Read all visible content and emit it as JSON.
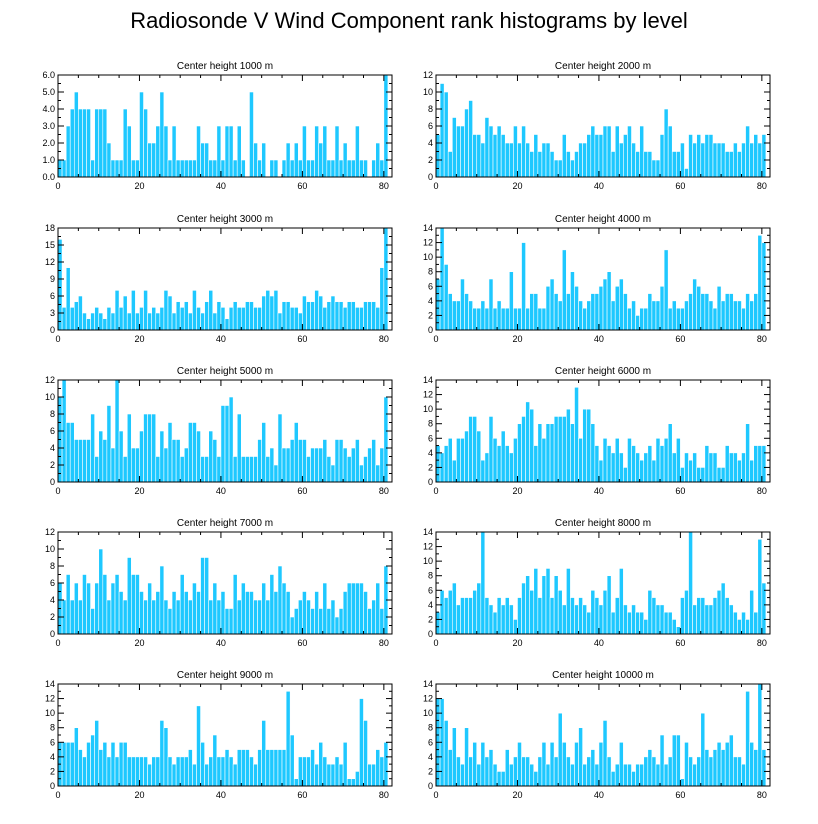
{
  "title": "Radiosonde V Wind Component rank histograms by level",
  "colors": {
    "bar": "#1ec8ff",
    "bar_edge": "#ffffff",
    "axis": "#000000"
  },
  "chart_data": [
    {
      "type": "bar",
      "title": "Center height 1000 m",
      "xlim": [
        0,
        82
      ],
      "ylim": [
        0,
        6
      ],
      "xticks": [
        0,
        20,
        40,
        60,
        80
      ],
      "yticks": [
        0,
        1,
        2,
        3,
        4,
        5,
        6
      ],
      "ytick_labels": [
        "0.0",
        "1.0",
        "2.0",
        "3.0",
        "4.0",
        "5.0",
        "6.0"
      ],
      "values": [
        1,
        1,
        3,
        4,
        5,
        4,
        4,
        4,
        1,
        4,
        4,
        4,
        2,
        1,
        1,
        1,
        4,
        3,
        1,
        1,
        5,
        4,
        2,
        2,
        3,
        5,
        3,
        1,
        3,
        1,
        1,
        1,
        1,
        1,
        3,
        2,
        2,
        1,
        1,
        3,
        1,
        3,
        3,
        1,
        3,
        1,
        0,
        5,
        2,
        1,
        2,
        0,
        1,
        1,
        0,
        1,
        2,
        1,
        2,
        1,
        3,
        1,
        1,
        3,
        2,
        3,
        1,
        1,
        3,
        1,
        2,
        1,
        1,
        3,
        1,
        1,
        0,
        1,
        2,
        1,
        6
      ]
    },
    {
      "type": "bar",
      "title": "Center height 2000 m",
      "xlim": [
        0,
        82
      ],
      "ylim": [
        0,
        12
      ],
      "xticks": [
        0,
        20,
        40,
        60,
        80
      ],
      "yticks": [
        0,
        2,
        4,
        6,
        8,
        10,
        12
      ],
      "values": [
        5,
        11,
        10,
        3,
        7,
        6,
        6,
        8,
        9,
        5,
        5,
        4,
        7,
        6,
        5,
        6,
        5,
        4,
        4,
        6,
        4,
        6,
        4,
        3,
        5,
        3,
        4,
        4,
        3,
        2,
        2,
        5,
        3,
        2,
        3,
        4,
        4,
        5,
        6,
        5,
        5,
        6,
        6,
        3,
        6,
        4,
        5,
        6,
        4,
        3,
        6,
        3,
        3,
        2,
        2,
        5,
        8,
        6,
        3,
        3,
        4,
        1,
        5,
        4,
        5,
        4,
        5,
        5,
        4,
        4,
        4,
        3,
        3,
        4,
        3,
        4,
        6,
        4,
        5,
        4,
        5
      ]
    },
    {
      "type": "bar",
      "title": "Center height 3000 m",
      "xlim": [
        0,
        82
      ],
      "ylim": [
        0,
        18
      ],
      "xticks": [
        0,
        20,
        40,
        60,
        80
      ],
      "yticks": [
        0,
        3,
        6,
        9,
        12,
        15,
        18
      ],
      "values": [
        16,
        4,
        11,
        4,
        5,
        6,
        3,
        2,
        3,
        4,
        3,
        2,
        4,
        3,
        7,
        4,
        6,
        3,
        7,
        3,
        4,
        7,
        3,
        4,
        3,
        4,
        7,
        6,
        3,
        5,
        4,
        5,
        3,
        7,
        4,
        3,
        5,
        7,
        3,
        5,
        4,
        2,
        4,
        5,
        4,
        4,
        5,
        5,
        4,
        4,
        6,
        7,
        6,
        7,
        3,
        5,
        5,
        4,
        4,
        3,
        6,
        5,
        5,
        7,
        6,
        4,
        5,
        6,
        5,
        5,
        4,
        5,
        5,
        4,
        4,
        5,
        5,
        5,
        4,
        11,
        18
      ]
    },
    {
      "type": "bar",
      "title": "Center height 4000 m",
      "xlim": [
        0,
        82
      ],
      "ylim": [
        0,
        14
      ],
      "xticks": [
        0,
        20,
        40,
        60,
        80
      ],
      "yticks": [
        0,
        2,
        4,
        6,
        8,
        10,
        12,
        14
      ],
      "values": [
        7,
        14,
        9,
        5,
        4,
        4,
        7,
        5,
        4,
        3,
        3,
        4,
        3,
        7,
        3,
        4,
        3,
        3,
        8,
        3,
        3,
        12,
        3,
        5,
        5,
        3,
        3,
        6,
        7,
        5,
        4,
        11,
        5,
        8,
        6,
        4,
        3,
        4,
        5,
        5,
        6,
        7,
        8,
        4,
        6,
        7,
        5,
        3,
        4,
        2,
        3,
        3,
        5,
        4,
        4,
        6,
        11,
        3,
        4,
        3,
        3,
        4,
        5,
        7,
        6,
        5,
        5,
        4,
        3,
        6,
        4,
        5,
        5,
        4,
        4,
        3,
        5,
        4,
        5,
        13,
        12
      ]
    },
    {
      "type": "bar",
      "title": "Center height 5000 m",
      "xlim": [
        0,
        82
      ],
      "ylim": [
        0,
        12
      ],
      "xticks": [
        0,
        20,
        40,
        60,
        80
      ],
      "yticks": [
        0,
        2,
        4,
        6,
        8,
        10,
        12
      ],
      "values": [
        10,
        12,
        7,
        7,
        5,
        5,
        5,
        5,
        8,
        3,
        6,
        5,
        9,
        4,
        12,
        6,
        3,
        8,
        4,
        4,
        6,
        8,
        8,
        8,
        3,
        6,
        4,
        7,
        5,
        5,
        3,
        4,
        7,
        7,
        6,
        3,
        3,
        6,
        5,
        3,
        9,
        9,
        10,
        3,
        8,
        3,
        3,
        3,
        3,
        5,
        7,
        3,
        4,
        2,
        8,
        4,
        4,
        5,
        7,
        5,
        5,
        3,
        4,
        4,
        4,
        5,
        3,
        2,
        5,
        5,
        4,
        3,
        4,
        5,
        2,
        3,
        4,
        5,
        2,
        4,
        10
      ]
    },
    {
      "type": "bar",
      "title": "Center height 6000 m",
      "xlim": [
        0,
        82
      ],
      "ylim": [
        0,
        14
      ],
      "xticks": [
        0,
        20,
        40,
        60,
        80
      ],
      "yticks": [
        0,
        2,
        4,
        6,
        8,
        10,
        12,
        14
      ],
      "values": [
        5,
        4,
        5,
        6,
        3,
        6,
        6,
        7,
        9,
        9,
        7,
        3,
        4,
        9,
        6,
        5,
        7,
        5,
        4,
        6,
        8,
        9,
        11,
        10,
        5,
        8,
        6,
        8,
        8,
        9,
        9,
        9,
        10,
        8,
        13,
        6,
        10,
        10,
        8,
        5,
        3,
        6,
        5,
        4,
        6,
        4,
        2,
        6,
        5,
        4,
        3,
        4,
        5,
        3,
        6,
        5,
        6,
        8,
        4,
        6,
        2,
        4,
        3,
        4,
        2,
        2,
        5,
        4,
        4,
        2,
        2,
        5,
        4,
        4,
        3,
        4,
        8,
        3,
        5,
        5,
        5
      ]
    },
    {
      "type": "bar",
      "title": "Center height 7000 m",
      "xlim": [
        0,
        82
      ],
      "ylim": [
        0,
        12
      ],
      "xticks": [
        0,
        20,
        40,
        60,
        80
      ],
      "yticks": [
        0,
        2,
        4,
        6,
        8,
        10,
        12
      ],
      "values": [
        6,
        4,
        7,
        4,
        6,
        4,
        7,
        6,
        3,
        6,
        10,
        7,
        4,
        6,
        7,
        5,
        4,
        9,
        7,
        7,
        5,
        4,
        6,
        4,
        5,
        8,
        4,
        3,
        5,
        4,
        7,
        5,
        4,
        6,
        5,
        9,
        9,
        4,
        6,
        4,
        5,
        3,
        3,
        7,
        4,
        6,
        5,
        5,
        4,
        4,
        6,
        4,
        7,
        5,
        8,
        6,
        5,
        2,
        3,
        4,
        5,
        4,
        3,
        5,
        3,
        6,
        3,
        4,
        2,
        3,
        5,
        6,
        6,
        6,
        6,
        5,
        3,
        4,
        6,
        3,
        8
      ]
    },
    {
      "type": "bar",
      "title": "Center height 8000 m",
      "xlim": [
        0,
        82
      ],
      "ylim": [
        0,
        14
      ],
      "xticks": [
        0,
        20,
        40,
        60,
        80
      ],
      "yticks": [
        0,
        2,
        4,
        6,
        8,
        10,
        12,
        14
      ],
      "values": [
        3,
        6,
        5,
        6,
        7,
        4,
        5,
        5,
        5,
        6,
        7,
        14,
        5,
        4,
        3,
        5,
        4,
        5,
        4,
        2,
        5,
        7,
        8,
        6,
        9,
        5,
        8,
        9,
        5,
        8,
        6,
        4,
        9,
        5,
        4,
        5,
        4,
        3,
        6,
        5,
        4,
        6,
        8,
        3,
        5,
        9,
        4,
        3,
        4,
        3,
        3,
        2,
        6,
        5,
        4,
        4,
        3,
        3,
        2,
        1,
        5,
        6,
        14,
        4,
        5,
        5,
        4,
        4,
        5,
        6,
        7,
        5,
        4,
        3,
        2,
        3,
        2,
        6,
        3,
        13,
        7
      ]
    },
    {
      "type": "bar",
      "title": "Center height 9000 m",
      "xlim": [
        0,
        82
      ],
      "ylim": [
        0,
        14
      ],
      "xticks": [
        0,
        20,
        40,
        60,
        80
      ],
      "yticks": [
        0,
        2,
        4,
        6,
        8,
        10,
        12,
        14
      ],
      "values": [
        6,
        6,
        6,
        6,
        8,
        5,
        4,
        6,
        7,
        9,
        5,
        6,
        4,
        6,
        4,
        6,
        6,
        4,
        4,
        4,
        4,
        4,
        3,
        4,
        4,
        9,
        8,
        4,
        3,
        4,
        4,
        4,
        5,
        3,
        11,
        6,
        3,
        4,
        7,
        4,
        4,
        5,
        4,
        3,
        5,
        5,
        5,
        4,
        3,
        5,
        9,
        5,
        5,
        5,
        5,
        5,
        13,
        7,
        1,
        4,
        4,
        4,
        5,
        3,
        6,
        4,
        3,
        3,
        4,
        3,
        6,
        1,
        1,
        2,
        12,
        9,
        3,
        3,
        5,
        4,
        6
      ]
    },
    {
      "type": "bar",
      "title": "Center height 10000 m",
      "xlim": [
        0,
        82
      ],
      "ylim": [
        0,
        14
      ],
      "xticks": [
        0,
        20,
        40,
        60,
        80
      ],
      "yticks": [
        0,
        2,
        4,
        6,
        8,
        10,
        12,
        14
      ],
      "values": [
        12,
        12,
        9,
        5,
        8,
        4,
        3,
        8,
        4,
        6,
        3,
        6,
        4,
        5,
        3,
        2,
        2,
        5,
        3,
        4,
        6,
        4,
        4,
        3,
        2,
        4,
        6,
        3,
        6,
        4,
        10,
        6,
        4,
        3,
        6,
        8,
        3,
        4,
        5,
        3,
        6,
        9,
        4,
        2,
        3,
        6,
        3,
        3,
        2,
        3,
        3,
        4,
        5,
        4,
        3,
        7,
        3,
        4,
        7,
        7,
        1,
        6,
        4,
        3,
        4,
        10,
        5,
        4,
        5,
        6,
        5,
        6,
        7,
        4,
        4,
        3,
        13,
        6,
        5,
        14,
        5
      ]
    }
  ]
}
